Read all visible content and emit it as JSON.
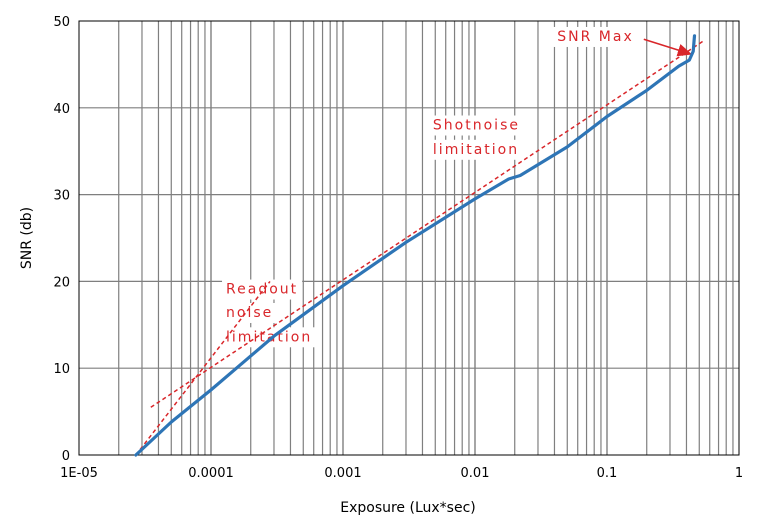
{
  "chart_data": {
    "type": "line",
    "xlabel": "Exposure (Lux*sec)",
    "ylabel": "SNR (db)",
    "xscale": "log",
    "xlim": [
      1e-05,
      1
    ],
    "ylim": [
      0,
      50
    ],
    "x_tick_labels": [
      "1E-05",
      "0.0001",
      "0.001",
      "0.01",
      "0.1",
      "1"
    ],
    "x_tick_values": [
      1e-05,
      0.0001,
      0.001,
      0.01,
      0.1,
      1
    ],
    "y_ticks": [
      0,
      10,
      20,
      30,
      40,
      50
    ],
    "grid": true,
    "colors": {
      "series": "#2e75b6",
      "annotation": "#d9262a",
      "grid": "#7f7f7f"
    },
    "series": [
      {
        "x": [
          2.7e-05,
          5e-05,
          0.0001,
          0.0003,
          0.001,
          0.003,
          0.01,
          0.018,
          0.022,
          0.05,
          0.1,
          0.2,
          0.35,
          0.42,
          0.45,
          0.46
        ],
        "y": [
          0,
          3.8,
          7.5,
          13.7,
          19.5,
          24.5,
          29.5,
          31.8,
          32.2,
          35.5,
          39.0,
          42.0,
          44.8,
          45.5,
          46.5,
          48.3
        ]
      }
    ],
    "reference_lines": [
      {
        "x": [
          3.5e-05,
          0.55
        ],
        "y": [
          5.5,
          47.8
        ]
      },
      {
        "x": [
          2.7e-05,
          0.00028
        ],
        "y": [
          0,
          20
        ]
      }
    ],
    "annotations": [
      {
        "text": "SNR Max",
        "x": 0.042,
        "y": 47.7
      },
      {
        "text": "Shotnoise",
        "x": 0.0048,
        "y": 37.5
      },
      {
        "text": "limitation",
        "x": 0.0048,
        "y": 34.7
      },
      {
        "text": "Readout",
        "x": 0.00013,
        "y": 18.6
      },
      {
        "text": "noise",
        "x": 0.00013,
        "y": 15.9
      },
      {
        "text": "limitation",
        "x": 0.00013,
        "y": 13.1
      }
    ],
    "arrow": {
      "from": [
        0.19,
        47.9
      ],
      "to": [
        0.43,
        46.2
      ]
    }
  }
}
